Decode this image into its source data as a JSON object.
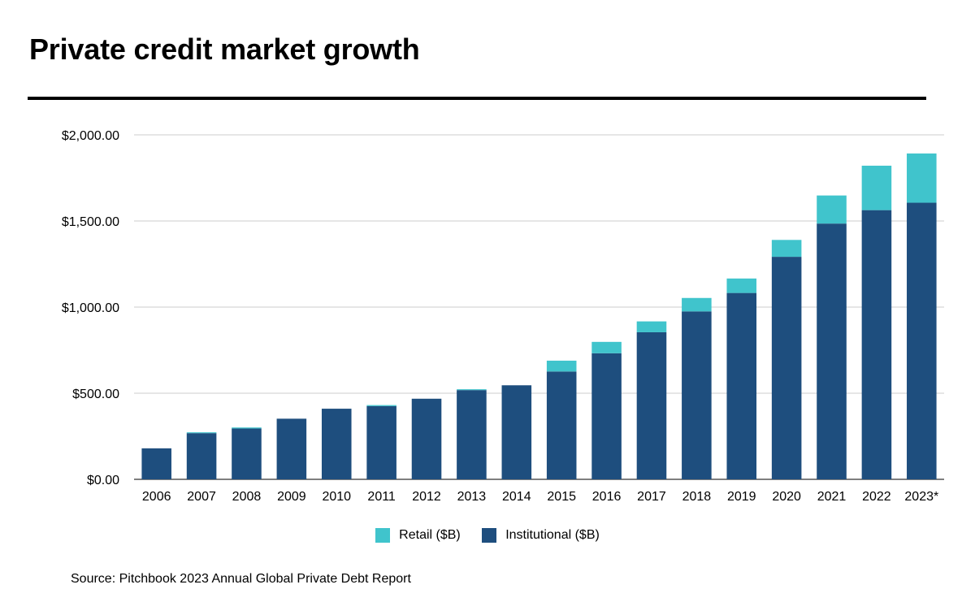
{
  "title": "Private credit market growth",
  "source": "Source: Pitchbook 2023 Annual Global Private Debt Report",
  "colors": {
    "retail": "#40c4cc",
    "institutional": "#1e4e7e",
    "grid": "#cccccc",
    "rule": "#000000"
  },
  "chart_data": {
    "type": "bar",
    "stacked": true,
    "categories": [
      "2006",
      "2007",
      "2008",
      "2009",
      "2010",
      "2011",
      "2012",
      "2013",
      "2014",
      "2015",
      "2016",
      "2017",
      "2018",
      "2019",
      "2020",
      "2021",
      "2022",
      "2023*"
    ],
    "series": [
      {
        "name": "Institutional ($B)",
        "values": [
          180,
          268,
          295,
          352,
          410,
          425,
          468,
          518,
          546,
          626,
          732,
          854,
          975,
          1082,
          1292,
          1485,
          1563,
          1606
        ]
      },
      {
        "name": "Retail ($B)",
        "values": [
          0,
          5,
          6,
          0,
          0,
          6,
          0,
          5,
          0,
          63,
          66,
          63,
          78,
          84,
          98,
          163,
          258,
          286
        ]
      }
    ],
    "ylim": [
      0,
      2000
    ],
    "yticks": [
      0,
      500,
      1000,
      1500,
      2000
    ],
    "ytick_labels": [
      "$0.00",
      "$500.00",
      "$1,000.00",
      "$1,500.00",
      "$2,000.00"
    ],
    "grid": true,
    "legend_position": "bottom",
    "legend": [
      "Retail ($B)",
      "Institutional ($B)"
    ]
  }
}
